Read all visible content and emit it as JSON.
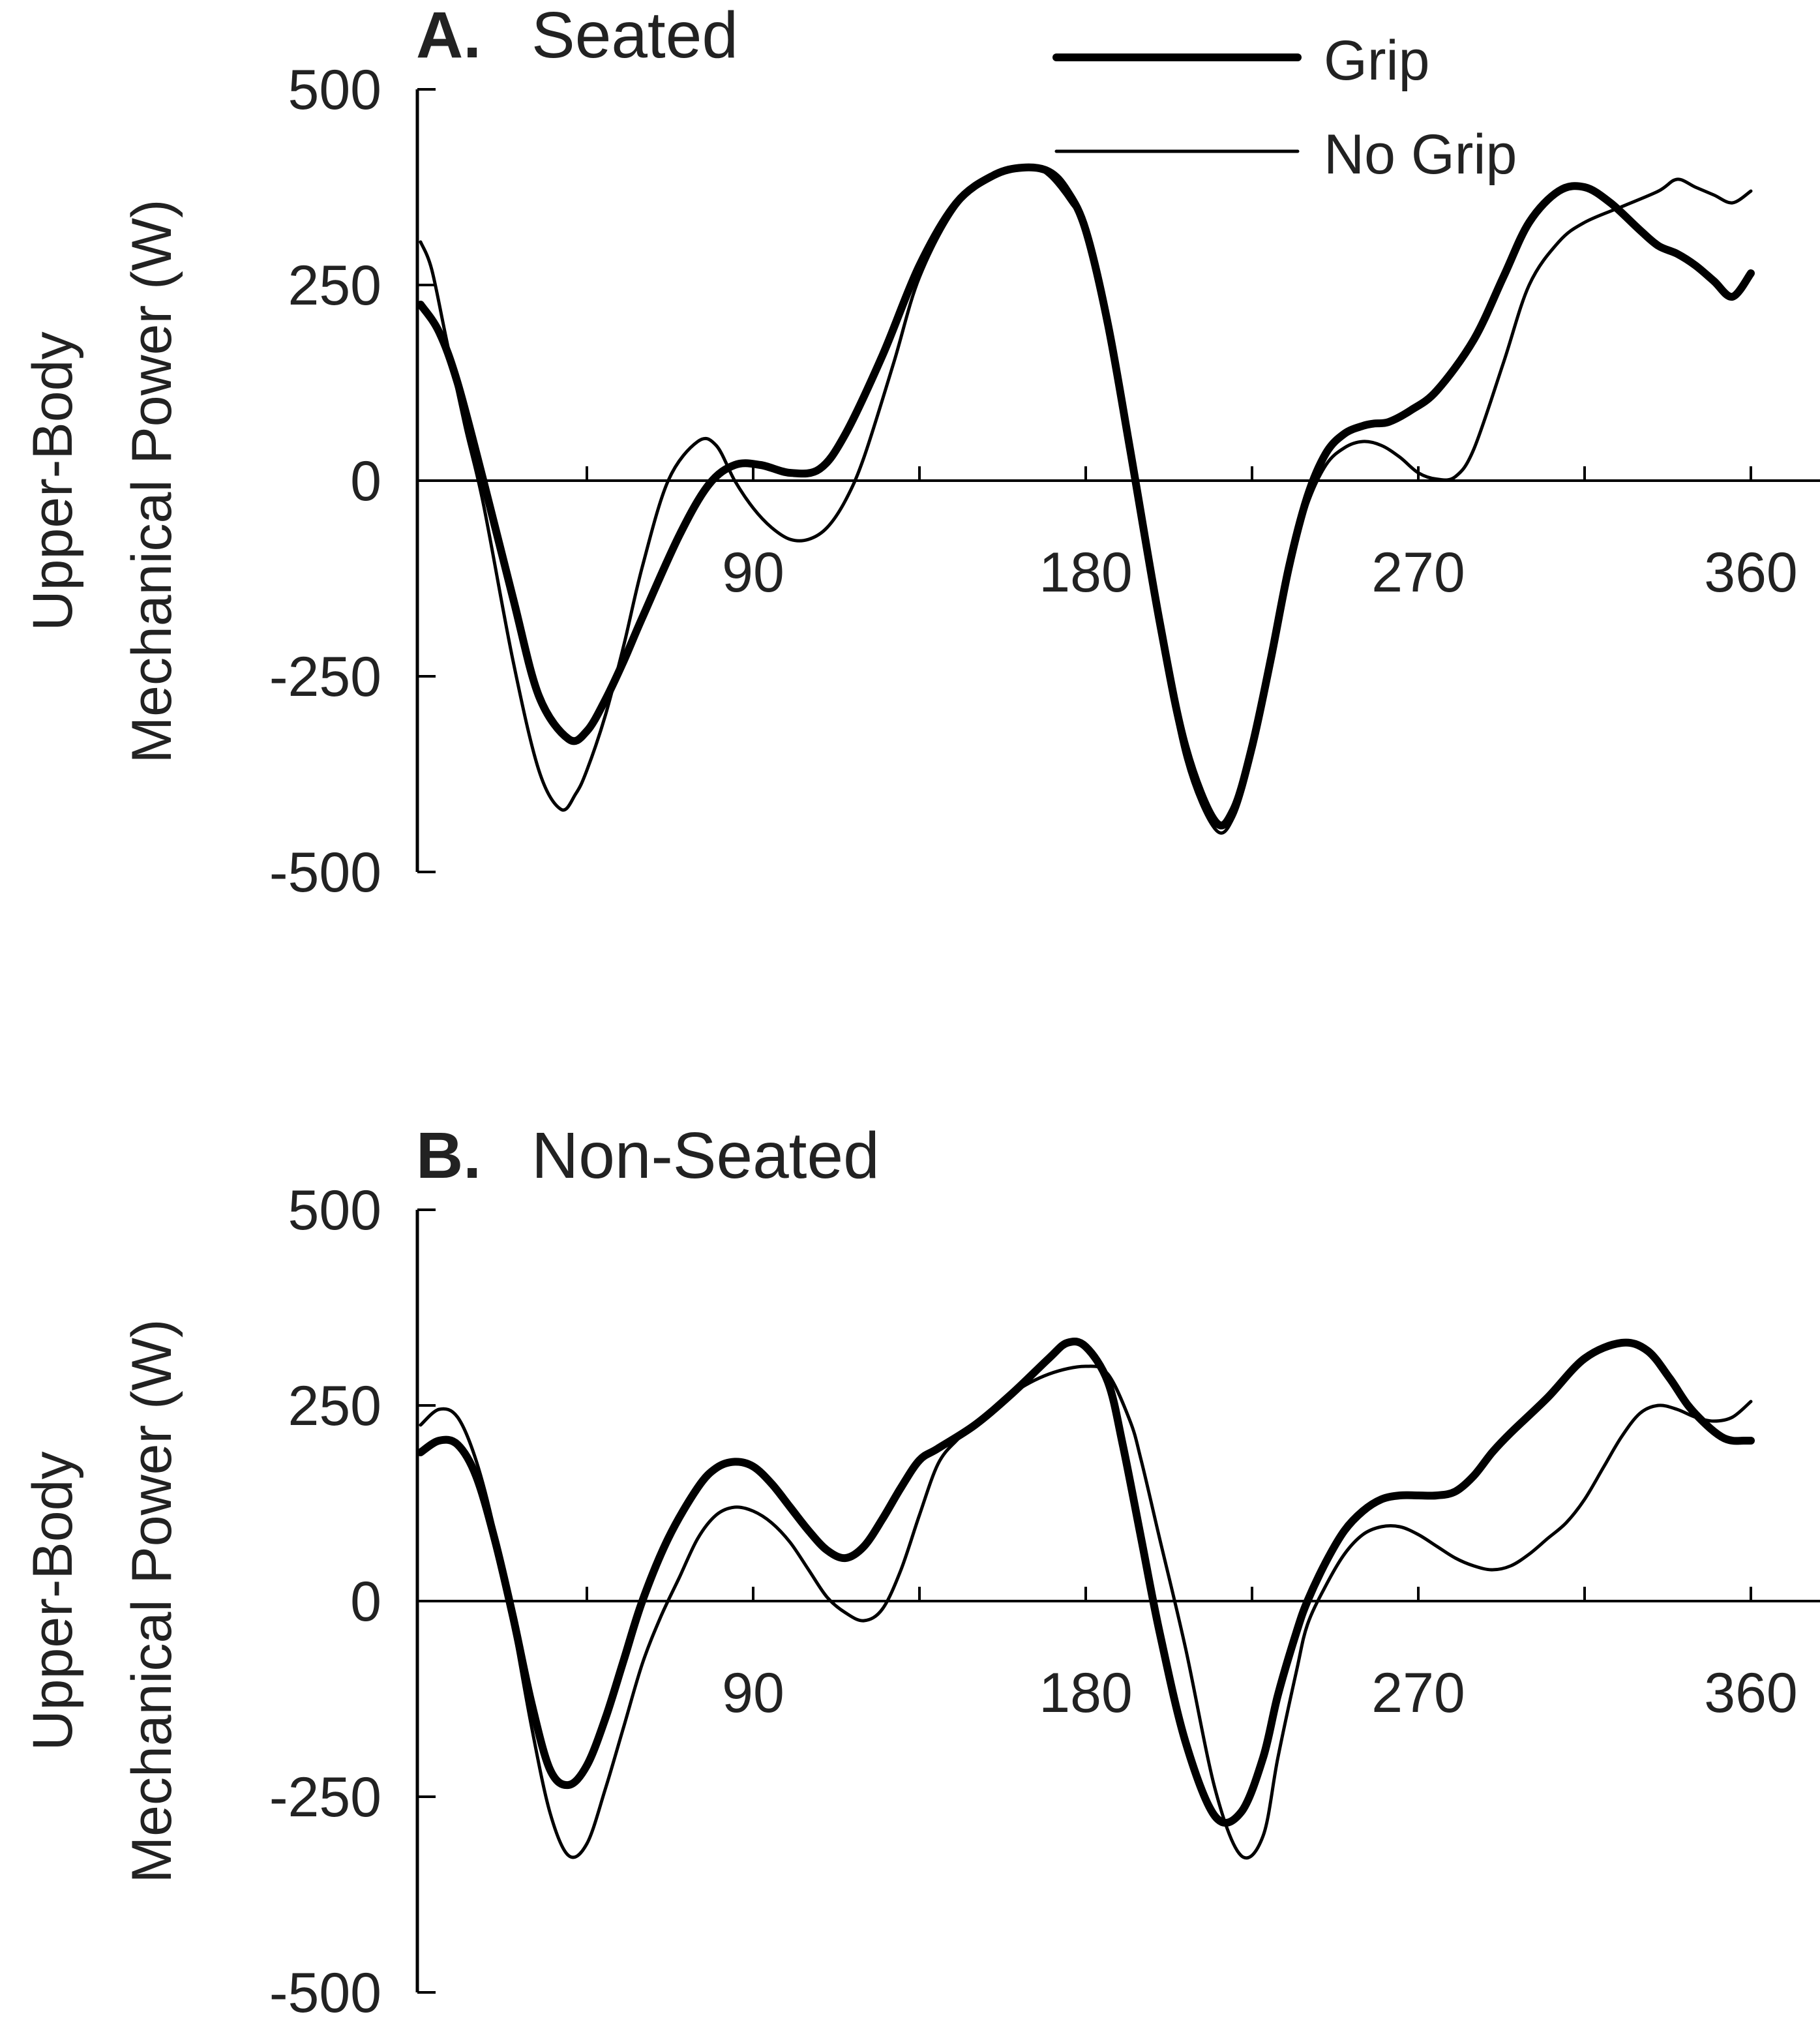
{
  "legend": {
    "grip": "Grip",
    "no_grip": "No Grip"
  },
  "chart_data": [
    {
      "type": "line",
      "panel_letter": "A.",
      "title": "Seated",
      "ylabel_line1": "Upper-Body",
      "ylabel_line2": "Mechanical Power (W)",
      "xlim": [
        0,
        360
      ],
      "ylim": [
        -500,
        500
      ],
      "xticks": [
        90,
        180,
        270,
        360
      ],
      "xticks_minor": [
        45,
        135,
        225,
        315
      ],
      "yticks": [
        500,
        250,
        0,
        -250,
        -500
      ],
      "legend_position": "top-right",
      "series": [
        {
          "name": "Grip",
          "x": [
            0,
            5,
            10,
            17,
            25,
            32,
            40,
            45,
            50,
            55,
            60,
            70,
            78,
            85,
            92,
            100,
            108,
            115,
            125,
            135,
            145,
            155,
            163,
            170,
            175,
            180,
            186,
            192,
            200,
            207,
            215,
            220,
            225,
            230,
            235,
            240,
            245,
            250,
            255,
            258,
            262,
            268,
            275,
            285,
            293,
            300,
            308,
            315,
            322,
            330,
            335,
            340,
            345,
            350,
            355,
            360
          ],
          "y": [
            225,
            190,
            125,
            0,
            -150,
            -275,
            -330,
            -320,
            -280,
            -230,
            -175,
            -70,
            -5,
            20,
            20,
            10,
            15,
            60,
            160,
            275,
            355,
            390,
            400,
            395,
            370,
            320,
            200,
            40,
            -180,
            -340,
            -435,
            -420,
            -340,
            -230,
            -110,
            -20,
            35,
            60,
            70,
            73,
            75,
            90,
            115,
            180,
            260,
            330,
            370,
            375,
            355,
            320,
            300,
            290,
            275,
            255,
            235,
            265
          ]
        },
        {
          "name": "No Grip",
          "x": [
            0,
            3,
            7,
            12,
            17,
            25,
            32,
            38,
            42,
            45,
            50,
            55,
            60,
            67,
            75,
            80,
            85,
            90,
            95,
            100,
            105,
            110,
            115,
            120,
            128,
            135,
            145,
            155,
            165,
            170,
            176,
            180,
            186,
            192,
            200,
            207,
            215,
            220,
            225,
            230,
            235,
            240,
            245,
            250,
            255,
            260,
            265,
            270,
            275,
            280,
            285,
            293,
            300,
            308,
            315,
            325,
            335,
            340,
            345,
            350,
            355,
            360
          ],
          "y": [
            305,
            270,
            180,
            70,
            -30,
            -230,
            -370,
            -420,
            -400,
            -370,
            -300,
            -210,
            -110,
            0,
            50,
            45,
            0,
            -35,
            -60,
            -75,
            -75,
            -60,
            -25,
            30,
            150,
            260,
            350,
            390,
            400,
            390,
            355,
            320,
            200,
            40,
            -185,
            -355,
            -445,
            -430,
            -350,
            -230,
            -110,
            -30,
            20,
            42,
            50,
            45,
            30,
            10,
            2,
            5,
            40,
            150,
            250,
            305,
            330,
            350,
            370,
            385,
            375,
            365,
            355,
            370
          ]
        }
      ]
    },
    {
      "type": "line",
      "panel_letter": "B.",
      "title": "Non-Seated",
      "ylabel_line1": "Upper-Body",
      "ylabel_line2": "Mechanical Power (W)",
      "xlim": [
        0,
        360
      ],
      "ylim": [
        -500,
        500
      ],
      "xticks": [
        90,
        180,
        270,
        360
      ],
      "xticks_minor": [
        45,
        135,
        225,
        315
      ],
      "yticks": [
        500,
        250,
        0,
        -250,
        -500
      ],
      "series": [
        {
          "name": "Grip",
          "x": [
            0,
            5,
            10,
            15,
            20,
            25,
            30,
            35,
            40,
            45,
            50,
            55,
            60,
            67,
            75,
            80,
            85,
            90,
            95,
            100,
            105,
            110,
            115,
            120,
            125,
            130,
            135,
            140,
            150,
            160,
            170,
            175,
            180,
            186,
            190,
            195,
            200,
            207,
            215,
            222,
            228,
            232,
            237,
            240,
            245,
            250,
            255,
            260,
            265,
            270,
            275,
            280,
            285,
            290,
            295,
            305,
            315,
            325,
            332,
            338,
            343,
            348,
            352,
            355,
            358,
            360
          ],
          "y": [
            190,
            205,
            200,
            160,
            80,
            -20,
            -130,
            -215,
            -235,
            -210,
            -150,
            -75,
            0,
            80,
            145,
            170,
            178,
            172,
            150,
            120,
            90,
            65,
            55,
            70,
            105,
            145,
            180,
            195,
            225,
            265,
            310,
            330,
            325,
            280,
            200,
            80,
            -40,
            -180,
            -275,
            -270,
            -200,
            -120,
            -40,
            0,
            50,
            90,
            115,
            130,
            135,
            135,
            135,
            140,
            160,
            190,
            215,
            260,
            310,
            330,
            320,
            285,
            250,
            225,
            210,
            205,
            205,
            205
          ]
        },
        {
          "name": "No Grip",
          "x": [
            0,
            5,
            10,
            15,
            20,
            25,
            30,
            35,
            40,
            45,
            50,
            55,
            60,
            65,
            70,
            75,
            80,
            85,
            90,
            95,
            100,
            105,
            110,
            115,
            120,
            125,
            130,
            135,
            140,
            145,
            150,
            160,
            170,
            180,
            186,
            192,
            195,
            200,
            207,
            215,
            222,
            228,
            232,
            237,
            240,
            245,
            250,
            255,
            260,
            265,
            270,
            275,
            280,
            285,
            290,
            295,
            300,
            305,
            310,
            315,
            320,
            325,
            330,
            335,
            340,
            345,
            350,
            355,
            360
          ],
          "y": [
            225,
            245,
            235,
            180,
            90,
            -30,
            -160,
            -270,
            -325,
            -310,
            -240,
            -160,
            -80,
            -20,
            30,
            80,
            110,
            120,
            115,
            100,
            75,
            40,
            5,
            -15,
            -25,
            -10,
            40,
            110,
            175,
            205,
            225,
            265,
            290,
            300,
            290,
            230,
            180,
            80,
            -60,
            -240,
            -325,
            -300,
            -200,
            -90,
            -30,
            20,
            60,
            85,
            95,
            95,
            85,
            70,
            55,
            45,
            40,
            45,
            60,
            80,
            100,
            130,
            170,
            210,
            240,
            250,
            245,
            235,
            230,
            235,
            255
          ]
        }
      ]
    }
  ]
}
